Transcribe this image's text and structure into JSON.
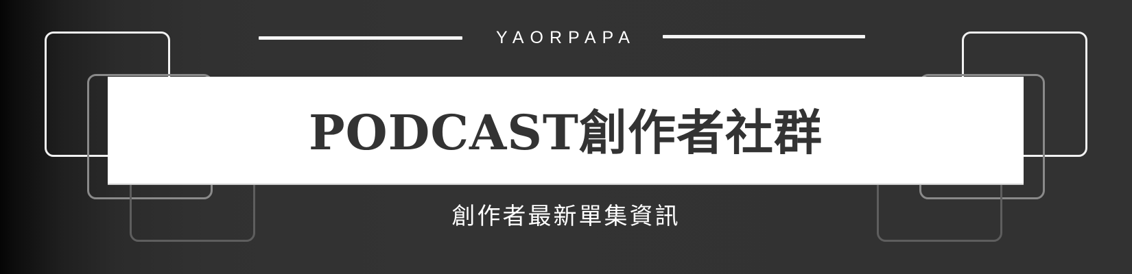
{
  "banner": {
    "brand": "YAORPAPA",
    "title": "PODCAST創作者社群",
    "subtitle": "創作者最新單集資訊"
  },
  "colors": {
    "background": "#333333",
    "title_box": "#ffffff",
    "title_text": "#333333",
    "accent_line": "#f4f4f4"
  }
}
